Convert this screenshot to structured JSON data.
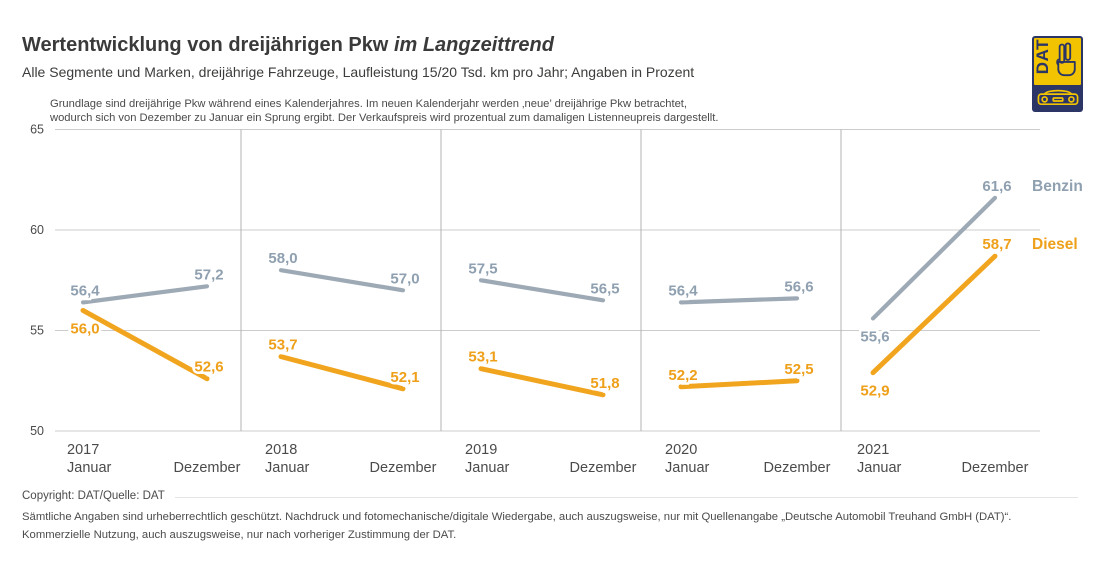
{
  "header": {
    "title_main": "Wertentwicklung von dreijährigen Pkw",
    "title_emphasis": "im Langzeittrend",
    "subtitle": "Alle Segmente und Marken, dreijährige Fahrzeuge, Laufleistung 15/20 Tsd. km pro Jahr; Angaben in Prozent",
    "note_line1": "Grundlage sind dreijährige Pkw während eines Kalenderjahres. Im neuen Kalenderjahr werden ‚neue’ dreijährige Pkw betrachtet,",
    "note_line2": "wodurch sich von Dezember zu Januar ein Sprung ergibt. Der Verkaufspreis wird prozentual zum damaligen Listenneupreis dargestellt."
  },
  "logo": {
    "text": "DAT"
  },
  "chart_data": {
    "type": "line",
    "title": "Wertentwicklung von dreijährigen Pkw im Langzeittrend",
    "ylabel": "Angaben in Prozent",
    "ylim": [
      50,
      65
    ],
    "yticks": [
      65,
      60,
      55,
      50
    ],
    "grid": true,
    "grid_color": "#cccccc",
    "divider_color": "#b3b3b3",
    "axis_text_color": "#4b4b4b",
    "years": [
      "2017",
      "2018",
      "2019",
      "2020",
      "2021"
    ],
    "month_labels": [
      "Januar",
      "Dezember"
    ],
    "legend_position": "right",
    "series": [
      {
        "name": "Benzin",
        "color": "#9DA9B4",
        "label_color": "#8FA0B0",
        "values": [
          [
            56.4,
            57.2
          ],
          [
            58.0,
            57.0
          ],
          [
            57.5,
            56.5
          ],
          [
            56.4,
            56.6
          ],
          [
            55.6,
            61.6
          ]
        ]
      },
      {
        "name": "Diesel",
        "color": "#F1A51F",
        "label_color": "#EFA01A",
        "values": [
          [
            56.0,
            52.6
          ],
          [
            53.7,
            52.1
          ],
          [
            53.1,
            51.8
          ],
          [
            52.2,
            52.5
          ],
          [
            52.9,
            58.7
          ]
        ]
      }
    ]
  },
  "footer": {
    "copyright": "Copyright: DAT/Quelle: DAT",
    "line1": "Sämtliche Angaben sind urheberrechtlich geschützt. Nachdruck und fotomechanische/digitale Wiedergabe, auch auszugsweise, nur mit Quellenangabe „Deutsche Automobil Treuhand GmbH (DAT)“.",
    "line2": "Kommerzielle Nutzung, auch auszugsweise, nur nach vorheriger Zustimmung der DAT."
  }
}
